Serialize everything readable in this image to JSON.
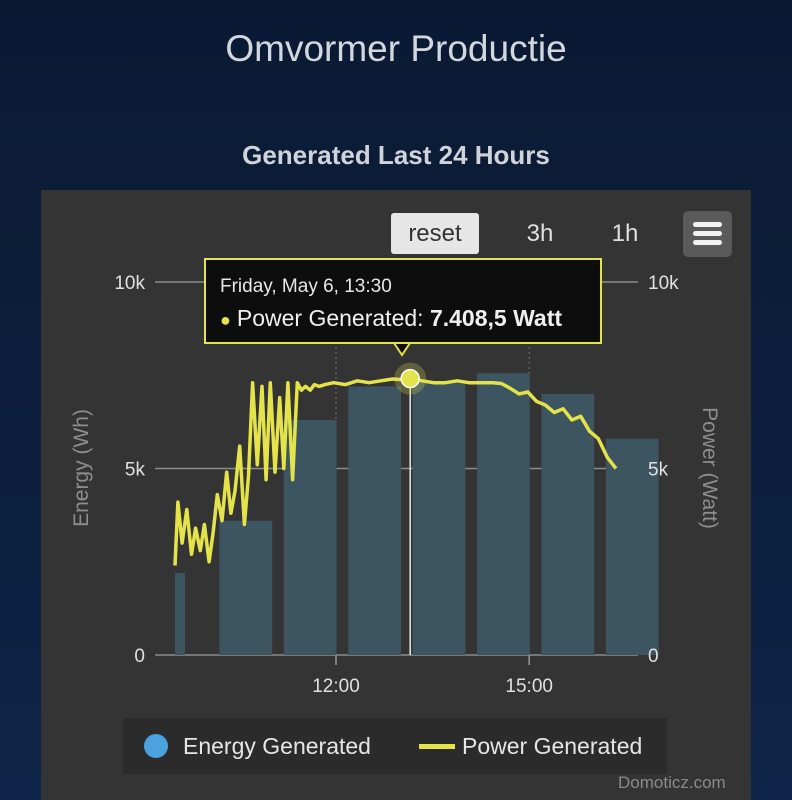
{
  "page": {
    "title": "Omvormer Productie"
  },
  "toolbar": {
    "reset_label": "reset",
    "range_3h_label": "3h",
    "range_1h_label": "1h",
    "menu_icon": "hamburger-menu-icon"
  },
  "tooltip": {
    "date": "Friday, May 6, 13:30",
    "series": "Power Generated:",
    "value": "7.408,5 Watt"
  },
  "credits": "Domoticz.com",
  "colors": {
    "bar": "#3d5461",
    "line": "#e4e34a",
    "legend_energy": "#4aa3df",
    "panel": "#343434"
  },
  "chart_data": {
    "type": "bar",
    "title": "Generated Last 24 Hours",
    "x_tick_labels": [
      "12:00",
      "15:00"
    ],
    "left_axis": {
      "title": "Energy (Wh)",
      "ticks": [
        "0",
        "5k",
        "10k"
      ],
      "range": [
        0,
        10000
      ]
    },
    "right_axis": {
      "title": "Power (Watt)",
      "ticks": [
        "0",
        "5k",
        "10k"
      ],
      "range": [
        0,
        10000
      ]
    },
    "legend": [
      "Energy Generated",
      "Power Generated"
    ],
    "x_range_hours": [
      9.5,
      17.0
    ],
    "series": [
      {
        "name": "Energy Generated",
        "type": "bar",
        "x": [
          9.5,
          10.5,
          11.5,
          12.5,
          13.5,
          14.5,
          15.5,
          16.5
        ],
        "values": [
          2200,
          3600,
          6300,
          7200,
          7300,
          7550,
          7000,
          5800
        ]
      },
      {
        "name": "Power Generated",
        "type": "line",
        "x": [
          9.5,
          9.55,
          9.62,
          9.7,
          9.78,
          9.85,
          9.93,
          10.0,
          10.08,
          10.15,
          10.22,
          10.3,
          10.38,
          10.45,
          10.52,
          10.6,
          10.68,
          10.75,
          10.82,
          10.9,
          10.98,
          11.05,
          11.12,
          11.2,
          11.28,
          11.35,
          11.42,
          11.5,
          11.58,
          11.65,
          11.72,
          11.8,
          11.87,
          11.95,
          12.05,
          12.2,
          12.4,
          12.6,
          12.8,
          13.0,
          13.2,
          13.4,
          13.5,
          13.7,
          13.9,
          14.1,
          14.3,
          14.5,
          14.7,
          14.9,
          15.05,
          15.2,
          15.35,
          15.5,
          15.65,
          15.8,
          15.95,
          16.1,
          16.25,
          16.4,
          16.55,
          16.7,
          16.85,
          17.0
        ],
        "values": [
          2400,
          4100,
          3000,
          3900,
          2700,
          3400,
          2800,
          3500,
          2500,
          3300,
          4300,
          3600,
          4900,
          3800,
          4400,
          5600,
          3500,
          4800,
          7300,
          5100,
          7200,
          4700,
          7300,
          4900,
          6900,
          5000,
          7300,
          4700,
          7300,
          7100,
          7200,
          7100,
          7250,
          7200,
          7250,
          7300,
          7250,
          7350,
          7300,
          7350,
          7400,
          7380,
          7408.5,
          7350,
          7300,
          7300,
          7350,
          7300,
          7300,
          7300,
          7280,
          7150,
          7000,
          7050,
          6800,
          6700,
          6500,
          6600,
          6300,
          6400,
          6000,
          5800,
          5300,
          5000
        ]
      }
    ]
  }
}
